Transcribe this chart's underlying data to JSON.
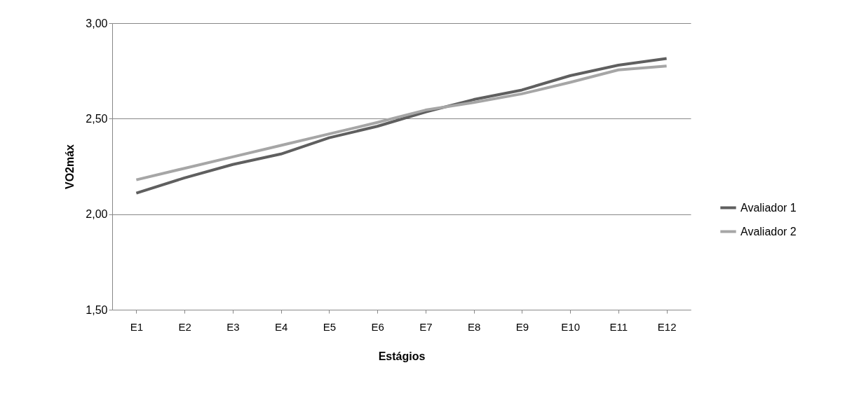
{
  "chart_data": {
    "type": "line",
    "xlabel": "Estágios",
    "ylabel": "VO2máx",
    "categories": [
      "E1",
      "E2",
      "E3",
      "E4",
      "E5",
      "E6",
      "E7",
      "E8",
      "E9",
      "E10",
      "E11",
      "E12"
    ],
    "series": [
      {
        "name": "Avaliador 1",
        "color": "#5f5f5f",
        "values": [
          2.11,
          2.19,
          2.26,
          2.315,
          2.4,
          2.46,
          2.535,
          2.6,
          2.65,
          2.725,
          2.78,
          2.815
        ]
      },
      {
        "name": "Avaliador 2",
        "color": "#a6a6a6",
        "values": [
          2.18,
          2.24,
          2.3,
          2.36,
          2.42,
          2.48,
          2.545,
          2.585,
          2.63,
          2.69,
          2.755,
          2.775
        ]
      }
    ],
    "ylim": [
      1.5,
      3.0
    ],
    "yticks": [
      {
        "value": 1.5,
        "label": "1,50"
      },
      {
        "value": 2.0,
        "label": "2,00"
      },
      {
        "value": 2.5,
        "label": "2,50"
      },
      {
        "value": 3.0,
        "label": "3,00"
      }
    ],
    "grid": "y",
    "legend": "right",
    "marker": "none",
    "line_style": "solid"
  }
}
